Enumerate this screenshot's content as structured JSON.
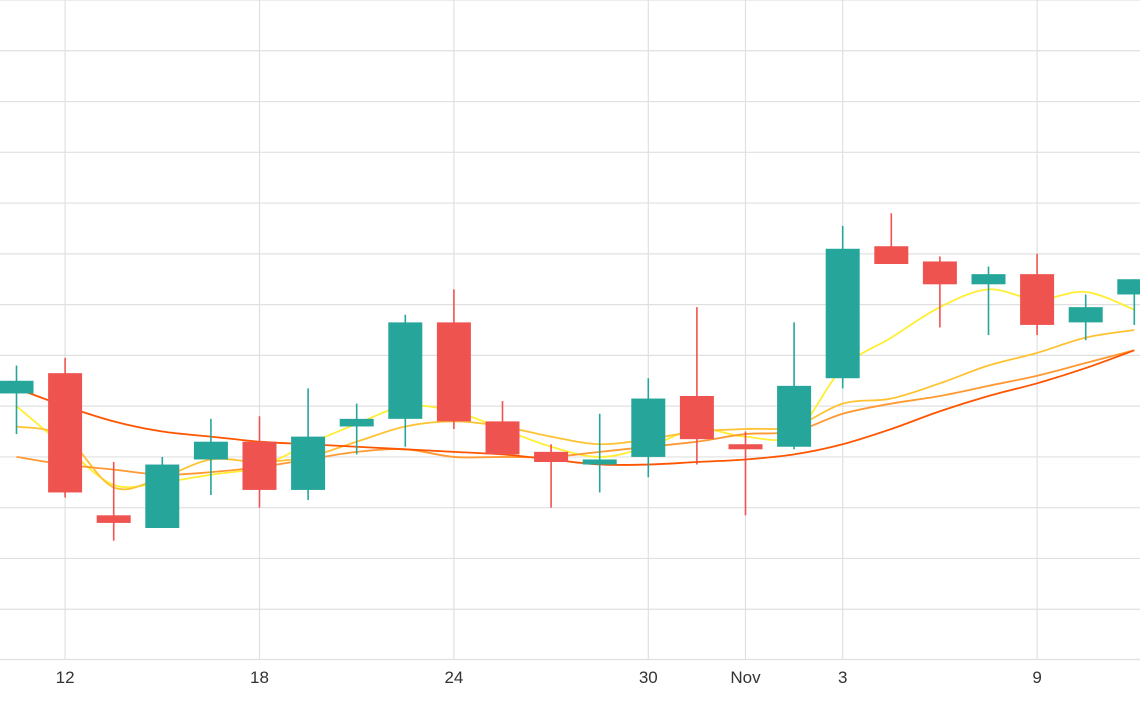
{
  "chart_data": {
    "type": "candlestick",
    "x_tick_labels": [
      {
        "label": "12",
        "index": 1
      },
      {
        "label": "18",
        "index": 5
      },
      {
        "label": "24",
        "index": 9
      },
      {
        "label": "30",
        "index": 13
      },
      {
        "label": "Nov",
        "index": 15
      },
      {
        "label": "3",
        "index": 17
      },
      {
        "label": "9",
        "index": 21
      }
    ],
    "grid": true,
    "ylim": [
      0,
      13
    ],
    "candles": [
      {
        "open": 5.25,
        "high": 5.8,
        "low": 4.45,
        "close": 5.5
      },
      {
        "open": 5.65,
        "high": 5.95,
        "low": 3.2,
        "close": 3.3
      },
      {
        "open": 2.85,
        "high": 3.9,
        "low": 2.35,
        "close": 2.7
      },
      {
        "open": 2.6,
        "high": 4.0,
        "low": 2.6,
        "close": 3.85
      },
      {
        "open": 3.95,
        "high": 4.75,
        "low": 3.25,
        "close": 4.3
      },
      {
        "open": 4.3,
        "high": 4.8,
        "low": 3.0,
        "close": 3.35
      },
      {
        "open": 3.35,
        "high": 5.35,
        "low": 3.15,
        "close": 4.4
      },
      {
        "open": 4.6,
        "high": 5.05,
        "low": 4.05,
        "close": 4.75
      },
      {
        "open": 4.75,
        "high": 6.8,
        "low": 4.2,
        "close": 6.65
      },
      {
        "open": 6.65,
        "high": 7.3,
        "low": 4.55,
        "close": 4.7
      },
      {
        "open": 4.7,
        "high": 5.1,
        "low": 4.05,
        "close": 4.05
      },
      {
        "open": 4.1,
        "high": 4.25,
        "low": 3.0,
        "close": 3.9
      },
      {
        "open": 3.85,
        "high": 4.85,
        "low": 3.3,
        "close": 3.95
      },
      {
        "open": 4.0,
        "high": 5.55,
        "low": 3.6,
        "close": 5.15
      },
      {
        "open": 5.2,
        "high": 6.95,
        "low": 3.85,
        "close": 4.35
      },
      {
        "open": 4.25,
        "high": 4.5,
        "low": 2.85,
        "close": 4.15
      },
      {
        "open": 4.2,
        "high": 6.65,
        "low": 4.15,
        "close": 5.4
      },
      {
        "open": 5.55,
        "high": 8.55,
        "low": 5.35,
        "close": 8.1
      },
      {
        "open": 8.15,
        "high": 8.8,
        "low": 7.8,
        "close": 7.8
      },
      {
        "open": 7.85,
        "high": 7.95,
        "low": 6.55,
        "close": 7.4
      },
      {
        "open": 7.4,
        "high": 7.75,
        "low": 6.4,
        "close": 7.6
      },
      {
        "open": 7.6,
        "high": 8.0,
        "low": 6.4,
        "close": 6.6
      },
      {
        "open": 6.65,
        "high": 7.2,
        "low": 6.3,
        "close": 6.95
      },
      {
        "open": 7.2,
        "high": 7.5,
        "low": 6.6,
        "close": 7.5
      }
    ],
    "series": [
      {
        "type": "line",
        "color": "#ffee33",
        "values": [
          5.0,
          4.2,
          3.45,
          3.5,
          3.65,
          3.8,
          4.25,
          4.65,
          5.0,
          4.9,
          4.55,
          4.2,
          4.0,
          4.2,
          4.55,
          4.4,
          4.45,
          5.75,
          6.35,
          6.95,
          7.3,
          7.1,
          7.25,
          6.9
        ]
      },
      {
        "type": "line",
        "color": "#ffc233",
        "values": [
          4.6,
          4.4,
          3.4,
          3.6,
          3.95,
          3.9,
          4.0,
          4.3,
          4.6,
          4.7,
          4.6,
          4.4,
          4.25,
          4.35,
          4.5,
          4.55,
          4.6,
          5.05,
          5.15,
          5.45,
          5.8,
          6.05,
          6.35,
          6.5
        ]
      },
      {
        "type": "line",
        "color": "#ff9933",
        "values": [
          4.0,
          3.85,
          3.75,
          3.65,
          3.7,
          3.8,
          3.95,
          4.1,
          4.15,
          4.0,
          4.0,
          4.0,
          4.1,
          4.2,
          4.3,
          4.45,
          4.5,
          4.85,
          5.05,
          5.2,
          5.4,
          5.6,
          5.85,
          6.1
        ]
      },
      {
        "type": "line",
        "color": "#ff5500",
        "values": [
          5.35,
          5.0,
          4.7,
          4.5,
          4.4,
          4.3,
          4.25,
          4.2,
          4.15,
          4.1,
          4.05,
          3.95,
          3.85,
          3.85,
          3.9,
          3.95,
          4.05,
          4.25,
          4.55,
          4.9,
          5.2,
          5.45,
          5.75,
          6.1
        ]
      }
    ]
  },
  "colors": {
    "up": "#26a69a",
    "down": "#ef5350",
    "grid": "#e0e0e0",
    "background": "#ffffff"
  }
}
